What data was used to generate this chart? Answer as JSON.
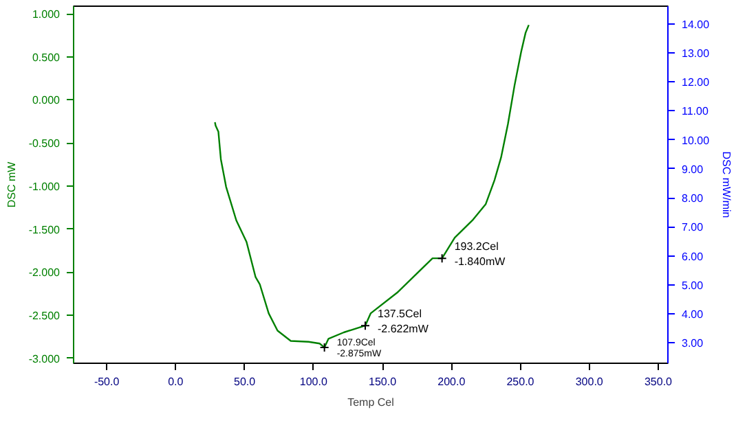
{
  "chart_data": {
    "type": "line",
    "xlabel": "Temp Cel",
    "ylabel": "DSC mW",
    "y2label": "DSC mW/min",
    "xlim": [
      -74,
      357
    ],
    "ylim": [
      -3.059,
      1.088
    ],
    "y2lim": [
      2.3,
      14.61
    ],
    "xticks": [
      {
        "value": -50,
        "label": "-50.0"
      },
      {
        "value": 0,
        "label": "0.0"
      },
      {
        "value": 50,
        "label": "50.0"
      },
      {
        "value": 100,
        "label": "100.0"
      },
      {
        "value": 150,
        "label": "150.0"
      },
      {
        "value": 200,
        "label": "200.0"
      },
      {
        "value": 250,
        "label": "250.0"
      },
      {
        "value": 300,
        "label": "300.0"
      },
      {
        "value": 350,
        "label": "350.0"
      }
    ],
    "yticks": [
      {
        "value": 1,
        "label": "1.000"
      },
      {
        "value": 0.5,
        "label": "0.500"
      },
      {
        "value": 0,
        "label": "0.000"
      },
      {
        "value": -0.5,
        "label": "-0.500"
      },
      {
        "value": -1,
        "label": "-1.000"
      },
      {
        "value": -1.5,
        "label": "-1.500"
      },
      {
        "value": -2,
        "label": "-2.000"
      },
      {
        "value": -2.5,
        "label": "-2.500"
      },
      {
        "value": -3,
        "label": "-3.000"
      }
    ],
    "y2ticks": [
      {
        "value": 3,
        "label": "3.00"
      },
      {
        "value": 4,
        "label": "4.00"
      },
      {
        "value": 5,
        "label": "5.00"
      },
      {
        "value": 6,
        "label": "6.00"
      },
      {
        "value": 7,
        "label": "7.00"
      },
      {
        "value": 8,
        "label": "8.00"
      },
      {
        "value": 9,
        "label": "9.00"
      },
      {
        "value": 10,
        "label": "10.00"
      },
      {
        "value": 11,
        "label": "11.00"
      },
      {
        "value": 12,
        "label": "12.00"
      },
      {
        "value": 13,
        "label": "13.00"
      },
      {
        "value": 14,
        "label": "14.00"
      }
    ],
    "grid": false,
    "marker": "none",
    "line_style": "solid",
    "series": [
      {
        "color": "#008000",
        "x": [
          28.5,
          29,
          31,
          32.8,
          35.3,
          36.6,
          44,
          51.4,
          58,
          61,
          67.5,
          73.9,
          83.5,
          96.4,
          104.4,
          107.9,
          110.8,
          122,
          137.5,
          141.4,
          160.6,
          176.7,
          186.3,
          193.2,
          202.4,
          215.2,
          224.9,
          231.3,
          236,
          241,
          245.8,
          250.6,
          253.8,
          256.1
        ],
        "values": [
          -0.26,
          -0.3,
          -0.37,
          -0.69,
          -0.9,
          -1.01,
          -1.4,
          -1.65,
          -2.06,
          -2.14,
          -2.48,
          -2.68,
          -2.8,
          -2.81,
          -2.83,
          -2.875,
          -2.775,
          -2.7,
          -2.622,
          -2.48,
          -2.24,
          -1.99,
          -1.84,
          -1.84,
          -1.6,
          -1.4,
          -1.21,
          -0.93,
          -0.67,
          -0.28,
          0.17,
          0.56,
          0.78,
          0.87
        ]
      }
    ],
    "annotations": [
      {
        "text": "107.9Cel\n-2.875mW",
        "x": 107.9,
        "y": -2.875
      },
      {
        "text": "137.5Cel\n-2.622mW",
        "x": 137.5,
        "y": -2.622
      },
      {
        "text": "193.2Cel\n-1.840mW",
        "x": 193.2,
        "y": -1.84
      }
    ]
  }
}
